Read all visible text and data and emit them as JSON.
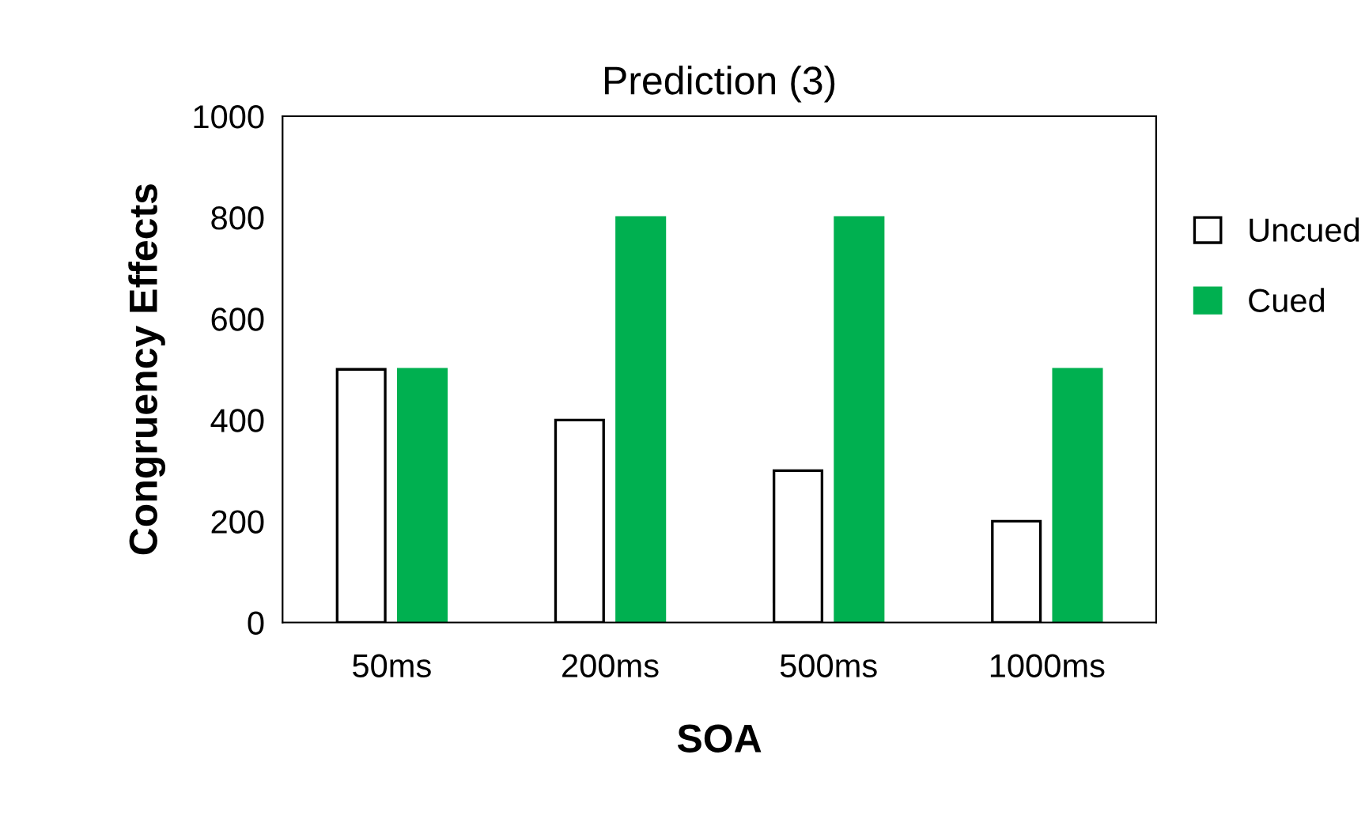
{
  "chart_data": {
    "type": "bar",
    "title": "Prediction (3)",
    "xlabel": "SOA",
    "ylabel": "Congruency Effects",
    "categories": [
      "50ms",
      "200ms",
      "500ms",
      "1000ms"
    ],
    "series": [
      {
        "name": "Uncued",
        "color": "#ffffff",
        "values": [
          500,
          400,
          300,
          200
        ]
      },
      {
        "name": "Cued",
        "color": "#00b050",
        "values": [
          500,
          800,
          800,
          500
        ]
      }
    ],
    "ylim": [
      0,
      1000
    ],
    "yticks": [
      0,
      200,
      400,
      600,
      800,
      1000
    ],
    "grid": false,
    "legend": "right"
  }
}
